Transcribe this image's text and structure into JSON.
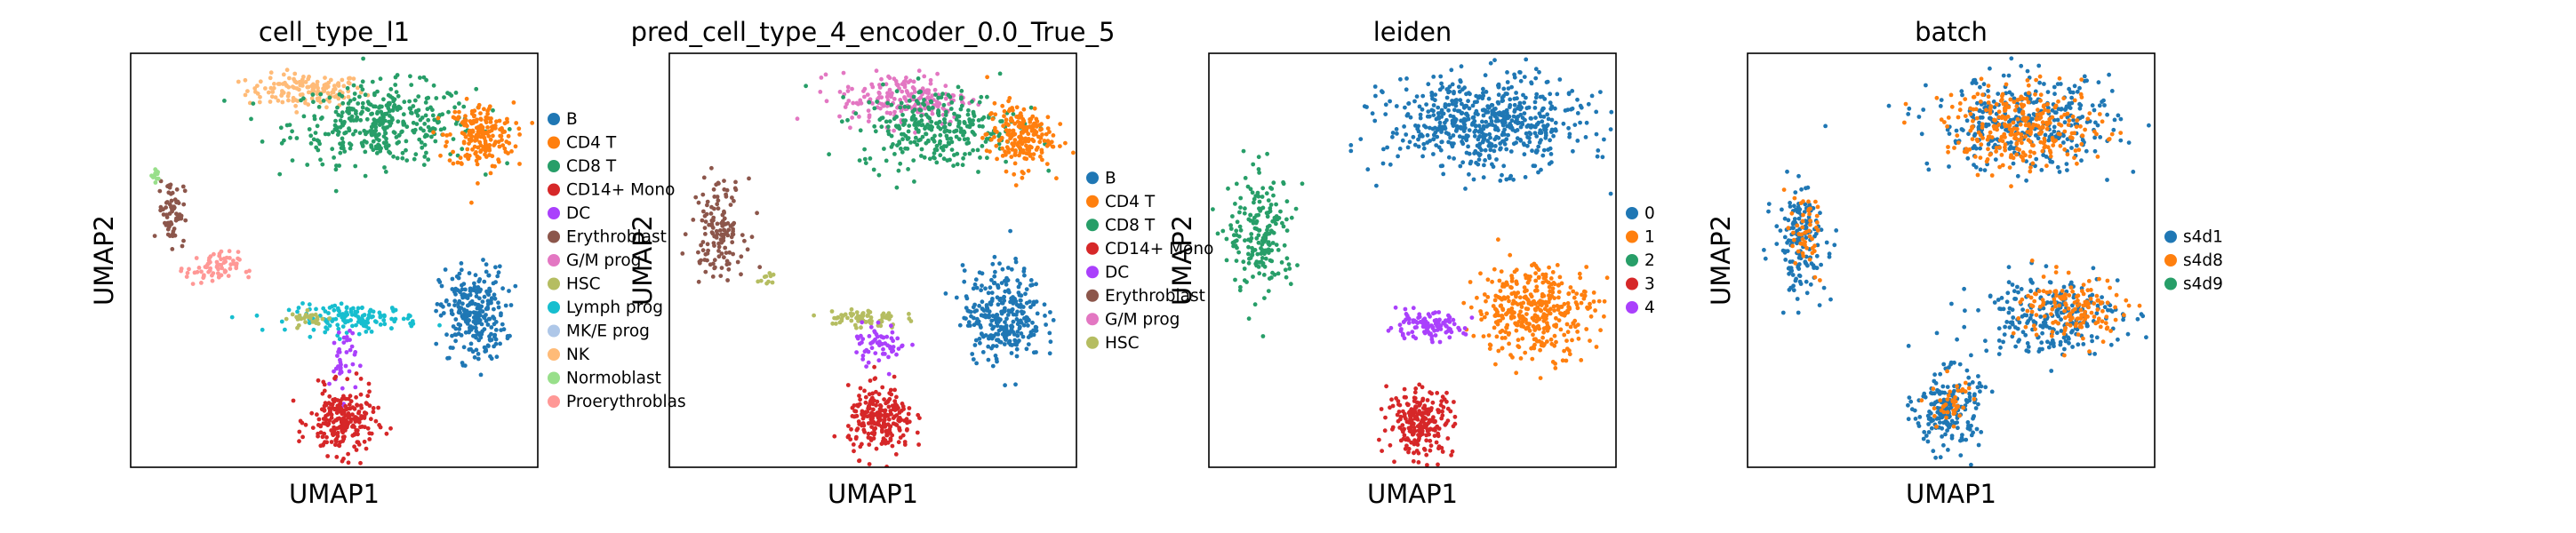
{
  "figure": {
    "background": "#ffffff"
  },
  "chart_data": [
    {
      "type": "scatter",
      "title": "cell_type_l1",
      "xlabel": "UMAP1",
      "ylabel": "UMAP2",
      "legend_position": "right",
      "grid": false,
      "ticks": false,
      "legend": [
        {
          "label": "B",
          "color": "#1f77b4"
        },
        {
          "label": "CD4 T",
          "color": "#ff7f0e"
        },
        {
          "label": "CD8 T",
          "color": "#279e68"
        },
        {
          "label": "CD14+ Mono",
          "color": "#d62728"
        },
        {
          "label": "DC",
          "color": "#aa40fc"
        },
        {
          "label": "Erythroblast",
          "color": "#8c564b"
        },
        {
          "label": "G/M prog",
          "color": "#e377c2"
        },
        {
          "label": "HSC",
          "color": "#b5bd61"
        },
        {
          "label": "Lymph prog",
          "color": "#17becf"
        },
        {
          "label": "MK/E prog",
          "color": "#aec7e8"
        },
        {
          "label": "NK",
          "color": "#ffbb78"
        },
        {
          "label": "Normoblast",
          "color": "#98df8a"
        },
        {
          "label": "Proerythroblas",
          "color": "#ff9896"
        }
      ],
      "regions": [
        {
          "category": "NK",
          "color": "#ffbb78",
          "center": [
            0.43,
            0.91
          ],
          "spread": [
            0.09,
            0.025
          ],
          "count": 140
        },
        {
          "category": "CD8 T",
          "color": "#279e68",
          "center": [
            0.62,
            0.83
          ],
          "spread": [
            0.14,
            0.06
          ],
          "count": 380
        },
        {
          "category": "CD4 T",
          "color": "#ff7f0e",
          "center": [
            0.86,
            0.8
          ],
          "spread": [
            0.05,
            0.05
          ],
          "count": 200
        },
        {
          "category": "B",
          "color": "#1f77b4",
          "center": [
            0.84,
            0.37
          ],
          "spread": [
            0.05,
            0.07
          ],
          "count": 260
        },
        {
          "category": "Lymph prog",
          "color": "#17becf",
          "center": [
            0.55,
            0.36
          ],
          "spread": [
            0.1,
            0.02
          ],
          "count": 140
        },
        {
          "category": "HSC",
          "color": "#b5bd61",
          "center": [
            0.44,
            0.36
          ],
          "spread": [
            0.03,
            0.01
          ],
          "count": 30
        },
        {
          "category": "DC",
          "color": "#aa40fc",
          "center": [
            0.52,
            0.26
          ],
          "spread": [
            0.02,
            0.06
          ],
          "count": 40
        },
        {
          "category": "CD14+ Mono",
          "color": "#d62728",
          "center": [
            0.52,
            0.11
          ],
          "spread": [
            0.05,
            0.05
          ],
          "count": 230
        },
        {
          "category": "Erythroblast",
          "color": "#8c564b",
          "center": [
            0.1,
            0.62
          ],
          "spread": [
            0.02,
            0.05
          ],
          "count": 70
        },
        {
          "category": "Proerythroblas",
          "color": "#ff9896",
          "center": [
            0.2,
            0.48
          ],
          "spread": [
            0.04,
            0.025
          ],
          "count": 70
        },
        {
          "category": "Normoblast",
          "color": "#98df8a",
          "center": [
            0.06,
            0.7
          ],
          "spread": [
            0.006,
            0.012
          ],
          "count": 12
        }
      ]
    },
    {
      "type": "scatter",
      "title": "pred_cell_type_4_encoder_0.0_True_5",
      "xlabel": "UMAP1",
      "ylabel": "UMAP2",
      "legend_position": "right",
      "grid": false,
      "ticks": false,
      "legend": [
        {
          "label": "B",
          "color": "#1f77b4"
        },
        {
          "label": "CD4 T",
          "color": "#ff7f0e"
        },
        {
          "label": "CD8 T",
          "color": "#279e68"
        },
        {
          "label": "CD14+ Mono",
          "color": "#d62728"
        },
        {
          "label": "DC",
          "color": "#aa40fc"
        },
        {
          "label": "Erythroblast",
          "color": "#8c564b"
        },
        {
          "label": "G/M prog",
          "color": "#e377c2"
        },
        {
          "label": "HSC",
          "color": "#b5bd61"
        }
      ],
      "regions": [
        {
          "category": "G/M prog",
          "color": "#e377c2",
          "center": [
            0.58,
            0.89
          ],
          "spread": [
            0.1,
            0.04
          ],
          "count": 200
        },
        {
          "category": "CD8 T",
          "color": "#279e68",
          "center": [
            0.66,
            0.82
          ],
          "spread": [
            0.12,
            0.06
          ],
          "count": 300
        },
        {
          "category": "CD4 T",
          "color": "#ff7f0e",
          "center": [
            0.86,
            0.8
          ],
          "spread": [
            0.05,
            0.05
          ],
          "count": 200
        },
        {
          "category": "B",
          "color": "#1f77b4",
          "center": [
            0.82,
            0.37
          ],
          "spread": [
            0.06,
            0.07
          ],
          "count": 300
        },
        {
          "category": "HSC",
          "color": "#b5bd61",
          "center": [
            0.47,
            0.36
          ],
          "spread": [
            0.06,
            0.015
          ],
          "count": 70
        },
        {
          "category": "DC",
          "color": "#aa40fc",
          "center": [
            0.52,
            0.3
          ],
          "spread": [
            0.04,
            0.03
          ],
          "count": 60
        },
        {
          "category": "CD14+ Mono",
          "color": "#d62728",
          "center": [
            0.52,
            0.11
          ],
          "spread": [
            0.05,
            0.05
          ],
          "count": 230
        },
        {
          "category": "Erythroblast",
          "color": "#8c564b",
          "center": [
            0.12,
            0.58
          ],
          "spread": [
            0.04,
            0.07
          ],
          "count": 140
        },
        {
          "category": "HSC",
          "color": "#b5bd61",
          "center": [
            0.24,
            0.45
          ],
          "spread": [
            0.01,
            0.01
          ],
          "count": 10
        }
      ]
    },
    {
      "type": "scatter",
      "title": "leiden",
      "xlabel": "UMAP1",
      "ylabel": "UMAP2",
      "legend_position": "right",
      "grid": false,
      "ticks": false,
      "legend": [
        {
          "label": "0",
          "color": "#1f77b4"
        },
        {
          "label": "1",
          "color": "#ff7f0e"
        },
        {
          "label": "2",
          "color": "#279e68"
        },
        {
          "label": "3",
          "color": "#d62728"
        },
        {
          "label": "4",
          "color": "#aa40fc"
        }
      ],
      "regions": [
        {
          "category": "0",
          "color": "#1f77b4",
          "center": [
            0.68,
            0.83
          ],
          "spread": [
            0.15,
            0.07
          ],
          "count": 600
        },
        {
          "category": "1",
          "color": "#ff7f0e",
          "center": [
            0.8,
            0.38
          ],
          "spread": [
            0.09,
            0.07
          ],
          "count": 380
        },
        {
          "category": "4",
          "color": "#aa40fc",
          "center": [
            0.53,
            0.34
          ],
          "spread": [
            0.06,
            0.02
          ],
          "count": 110
        },
        {
          "category": "3",
          "color": "#d62728",
          "center": [
            0.52,
            0.11
          ],
          "spread": [
            0.05,
            0.05
          ],
          "count": 230
        },
        {
          "category": "2",
          "color": "#279e68",
          "center": [
            0.13,
            0.56
          ],
          "spread": [
            0.05,
            0.09
          ],
          "count": 200
        }
      ]
    },
    {
      "type": "scatter",
      "title": "batch",
      "xlabel": "UMAP1",
      "ylabel": "UMAP2",
      "legend_position": "right",
      "grid": false,
      "ticks": false,
      "legend": [
        {
          "label": "s4d1",
          "color": "#1f77b4"
        },
        {
          "label": "s4d8",
          "color": "#ff7f0e"
        },
        {
          "label": "s4d9",
          "color": "#279e68"
        }
      ],
      "regions": [
        {
          "category": "s4d1",
          "color": "#1f77b4",
          "center": [
            0.68,
            0.83
          ],
          "spread": [
            0.14,
            0.07
          ],
          "count": 350
        },
        {
          "category": "s4d8",
          "color": "#ff7f0e",
          "center": [
            0.68,
            0.82
          ],
          "spread": [
            0.12,
            0.06
          ],
          "count": 300
        },
        {
          "category": "s4d1",
          "color": "#1f77b4",
          "center": [
            0.74,
            0.37
          ],
          "spread": [
            0.11,
            0.06
          ],
          "count": 250
        },
        {
          "category": "s4d8",
          "color": "#ff7f0e",
          "center": [
            0.8,
            0.38
          ],
          "spread": [
            0.08,
            0.05
          ],
          "count": 150
        },
        {
          "category": "s4d1",
          "color": "#1f77b4",
          "center": [
            0.49,
            0.14
          ],
          "spread": [
            0.05,
            0.06
          ],
          "count": 200
        },
        {
          "category": "s4d8",
          "color": "#ff7f0e",
          "center": [
            0.5,
            0.15
          ],
          "spread": [
            0.03,
            0.04
          ],
          "count": 40
        },
        {
          "category": "s4d1",
          "color": "#1f77b4",
          "center": [
            0.13,
            0.55
          ],
          "spread": [
            0.04,
            0.08
          ],
          "count": 160
        },
        {
          "category": "s4d8",
          "color": "#ff7f0e",
          "center": [
            0.14,
            0.56
          ],
          "spread": [
            0.03,
            0.06
          ],
          "count": 50
        }
      ]
    }
  ]
}
